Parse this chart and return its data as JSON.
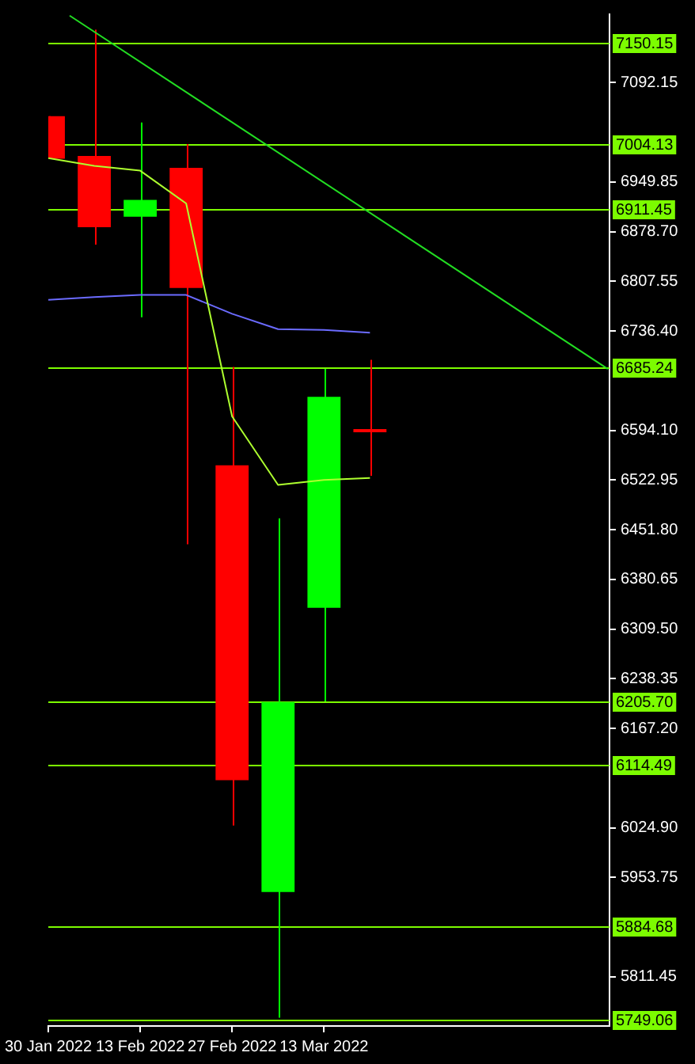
{
  "chart_data": {
    "type": "candlestick",
    "x": [
      "2022-01-30",
      "2022-02-06",
      "2022-02-13",
      "2022-02-20",
      "2022-02-27",
      "2022-03-06",
      "2022-03-13",
      "2022-03-20"
    ],
    "ohlc": [
      [
        7044,
        7044,
        6983,
        6983
      ],
      [
        6987,
        7168,
        6860,
        6885
      ],
      [
        6900,
        7035,
        6756,
        6924
      ],
      [
        6970,
        7004,
        6431,
        6798
      ],
      [
        6544,
        6685,
        6028,
        6093
      ],
      [
        5933,
        6468,
        5753,
        6205
      ],
      [
        6340,
        6682,
        6206,
        6642
      ],
      [
        6596,
        6695,
        6529,
        6592
      ]
    ],
    "colors": [
      "#ff0000",
      "#ff0000",
      "#00ff00",
      "#ff0000",
      "#ff0000",
      "#00ff00",
      "#00ff00",
      "#ff0000"
    ],
    "series": [
      {
        "type": "line",
        "color": "#adff2f",
        "x": [
          "2022-01-30",
          "2022-02-06",
          "2022-02-13",
          "2022-02-20",
          "2022-02-27",
          "2022-03-06",
          "2022-03-13",
          "2022-03-20"
        ],
        "values": [
          6984,
          6973,
          6966,
          6919,
          6614,
          6516,
          6523,
          6526
        ]
      },
      {
        "type": "line",
        "color": "#6b6bff",
        "x": [
          "2022-01-30",
          "2022-02-06",
          "2022-02-13",
          "2022-02-20",
          "2022-02-27",
          "2022-03-06",
          "2022-03-13",
          "2022-03-20"
        ],
        "values": [
          6781,
          6785,
          6788,
          6788,
          6761,
          6739,
          6738,
          6734
        ]
      },
      {
        "type": "line",
        "color": "#22dd22",
        "x": [
          "2022-02-02T06:00",
          "2022-04-25T06:00"
        ],
        "values": [
          7188,
          6682
        ]
      }
    ],
    "xlim": [
      "2022-01-30",
      "2022-04-25T12:00"
    ],
    "xticks": [
      {
        "value": "2022-01-30",
        "label": "30 Jan 2022"
      },
      {
        "value": "2022-02-13",
        "label": "13 Feb 2022"
      },
      {
        "value": "2022-02-27",
        "label": "27 Feb 2022"
      },
      {
        "value": "2022-03-13",
        "label": "13 Mar 2022"
      }
    ],
    "ylim": [
      5741,
      7190
    ],
    "yticks": [
      7092.15,
      6949.85,
      {
        "value": 6878.7,
        "label": "6878.70"
      },
      6807.55,
      {
        "value": 6736.4,
        "label": "6736.40"
      },
      {
        "value": 6594.1,
        "label": "6594.10"
      },
      6522.95,
      {
        "value": 6451.8,
        "label": "6451.80"
      },
      6380.65,
      {
        "value": 6309.5,
        "label": "6309.50"
      },
      6238.35,
      {
        "value": 6167.2,
        "label": "6167.20"
      },
      {
        "value": 6024.9,
        "label": "6024.90"
      },
      5953.75,
      5811.45
    ],
    "ref_lines": [
      {
        "axis": "y",
        "value": 7150.15,
        "label": "7150.15",
        "color": "#7cfc00"
      },
      {
        "axis": "y",
        "value": 7004.13,
        "label": "7004.13",
        "color": "#7cfc00"
      },
      {
        "axis": "y",
        "value": 6911.45,
        "label": "6911.45",
        "color": "#7cfc00"
      },
      {
        "axis": "y",
        "value": 6685.24,
        "label": "6685.24",
        "color": "#7cfc00"
      },
      {
        "axis": "y",
        "value": 6205.7,
        "label": "6205.70",
        "color": "#7cfc00"
      },
      {
        "axis": "y",
        "value": 6114.49,
        "label": "6114.49",
        "color": "#7cfc00"
      },
      {
        "axis": "y",
        "value": 5884.68,
        "label": "5884.68",
        "color": "#7cfc00"
      },
      {
        "axis": "y",
        "value": 5749.06,
        "label": "5749.06",
        "color": "#7cfc00"
      }
    ]
  }
}
